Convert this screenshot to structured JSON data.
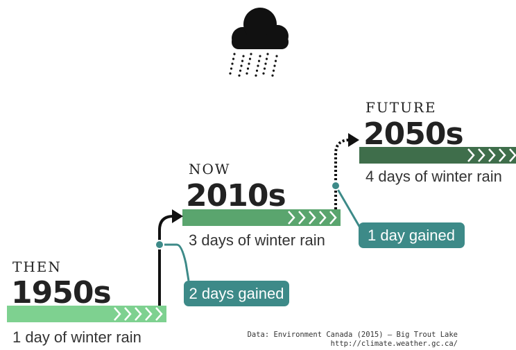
{
  "steps": [
    {
      "label": "THEN",
      "period": "1950s",
      "description": "1 day of winter rain"
    },
    {
      "label": "NOW",
      "period": "2010s",
      "description": "3 days of winter rain"
    },
    {
      "label": "FUTURE",
      "period": "2050s",
      "description": "4 days of winter rain"
    }
  ],
  "gains": [
    "2 days gained",
    "1 day gained"
  ],
  "source": [
    "Data: Environment Canada (2015) – Big Trout Lake",
    "http://climate.weather.gc.ca/"
  ]
}
